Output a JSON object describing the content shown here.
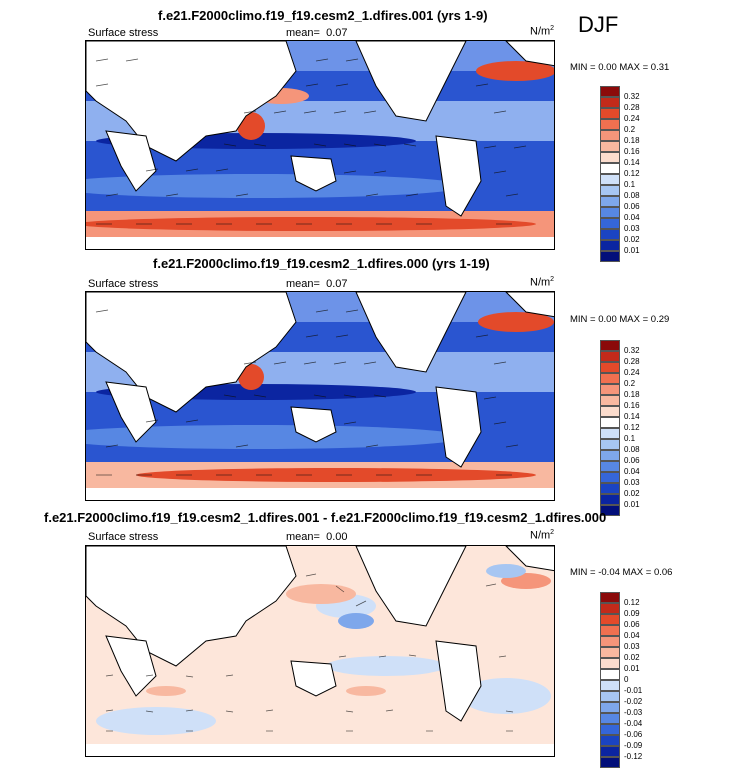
{
  "season": "DJF",
  "panels": [
    {
      "title": "f.e21.F2000climo.f19_f19.cesm2_1.dfires.001 (yrs 1-9)",
      "left_label": "Surface stress",
      "mean_label": "mean=",
      "mean_value": "0.07",
      "units": "N/m",
      "units_sup": "2",
      "stats": "MIN =   0.00 MAX =   0.31",
      "levels": [
        "0.32",
        "0.28",
        "0.24",
        "0.2",
        "0.18",
        "0.16",
        "0.14",
        "0.12",
        "0.1",
        "0.08",
        "0.06",
        "0.04",
        "0.03",
        "0.02",
        "0.01"
      ],
      "colors": [
        "#8b0a0a",
        "#c22a1a",
        "#e34a2a",
        "#f07050",
        "#f5957a",
        "#f8b8a0",
        "#fbdccd",
        "#ffffff",
        "#cfe0f8",
        "#a7c6f2",
        "#7ea7eb",
        "#5787e3",
        "#3566d9",
        "#1b44c2",
        "#0b25a1",
        "#020f7a"
      ]
    },
    {
      "title": "f.e21.F2000climo.f19_f19.cesm2_1.dfires.000 (yrs 1-19)",
      "left_label": "Surface stress",
      "mean_label": "mean=",
      "mean_value": "0.07",
      "units": "N/m",
      "units_sup": "2",
      "stats": "MIN =   0.00 MAX =   0.29",
      "levels": [
        "0.32",
        "0.28",
        "0.24",
        "0.2",
        "0.18",
        "0.16",
        "0.14",
        "0.12",
        "0.1",
        "0.08",
        "0.06",
        "0.04",
        "0.03",
        "0.02",
        "0.01"
      ],
      "colors": [
        "#8b0a0a",
        "#c22a1a",
        "#e34a2a",
        "#f07050",
        "#f5957a",
        "#f8b8a0",
        "#fbdccd",
        "#ffffff",
        "#cfe0f8",
        "#a7c6f2",
        "#7ea7eb",
        "#5787e3",
        "#3566d9",
        "#1b44c2",
        "#0b25a1",
        "#020f7a"
      ]
    },
    {
      "title": "f.e21.F2000climo.f19_f19.cesm2_1.dfires.001 - f.e21.F2000climo.f19_f19.cesm2_1.dfires.000",
      "left_label": "Surface stress",
      "mean_label": "mean=",
      "mean_value": "0.00",
      "units": "N/m",
      "units_sup": "2",
      "stats": "MIN =  -0.04 MAX =   0.06",
      "levels": [
        "0.12",
        "0.09",
        "0.06",
        "0.04",
        "0.03",
        "0.02",
        "0.01",
        "0",
        "-0.01",
        "-0.02",
        "-0.03",
        "-0.04",
        "-0.06",
        "-0.09",
        "-0.12"
      ],
      "colors": [
        "#8b0a0a",
        "#c22a1a",
        "#e34a2a",
        "#f07050",
        "#f5957a",
        "#f8b8a0",
        "#fbdccd",
        "#ffffff",
        "#cfe0f8",
        "#a7c6f2",
        "#7ea7eb",
        "#5787e3",
        "#3566d9",
        "#1b44c2",
        "#0b25a1",
        "#020f7a"
      ]
    }
  ]
}
